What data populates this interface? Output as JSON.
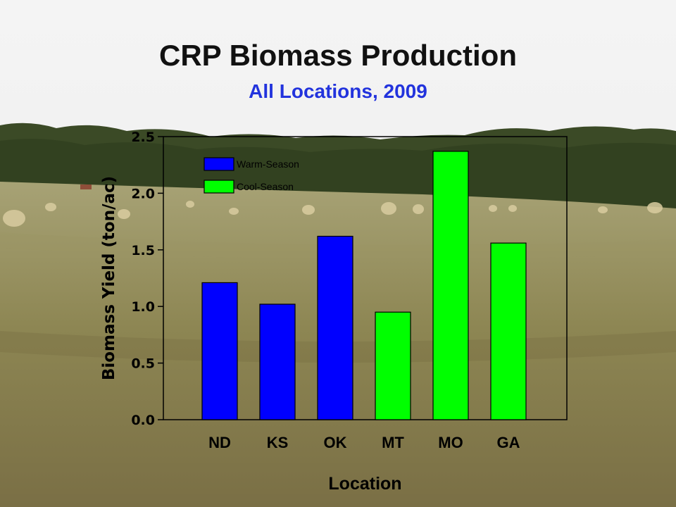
{
  "slide": {
    "title": "CRP Biomass Production",
    "subtitle": "All Locations, 2009"
  },
  "colors": {
    "warm_season": "#0000ff",
    "cool_season": "#00ff00",
    "title": "#111111",
    "subtitle": "#2233dd",
    "sky": "#f2f2f2",
    "trees": "#3b4a26",
    "field": "#8f8a56"
  },
  "chart_data": {
    "type": "bar",
    "title": "",
    "xlabel": "Location",
    "ylabel": "Biomass Yield (ton/ac)",
    "ylim": [
      0,
      2.5
    ],
    "yticks": [
      "0.0",
      "0.5",
      "1.0",
      "1.5",
      "2.0",
      "2.5"
    ],
    "categories": [
      "ND",
      "KS",
      "OK",
      "MT",
      "MO",
      "GA"
    ],
    "series": [
      {
        "name": "Warm-Season",
        "color": "#0000ff",
        "values": [
          1.21,
          1.02,
          1.62,
          null,
          null,
          null
        ]
      },
      {
        "name": "Cool-Season",
        "color": "#00ff00",
        "values": [
          null,
          null,
          null,
          0.95,
          2.37,
          1.56
        ]
      }
    ],
    "legend": "top-left",
    "grid": false,
    "background": "field photograph with hay bales"
  }
}
